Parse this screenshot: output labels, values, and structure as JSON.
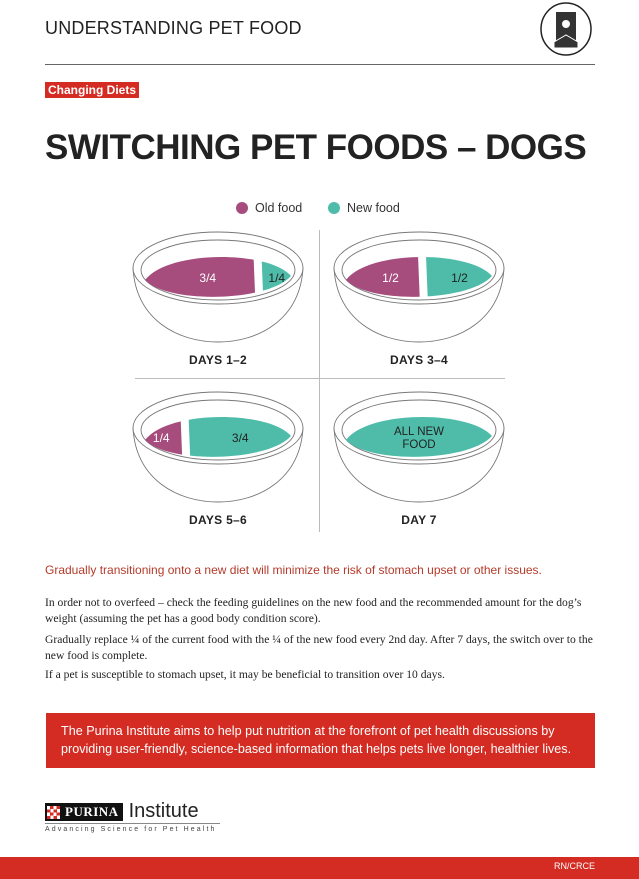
{
  "header": {
    "series_title": "UNDERSTANDING PET FOOD",
    "icon": "pet-food-bag-icon",
    "tag": "Changing Diets"
  },
  "title": "SWITCHING PET FOODS – DOGS",
  "colors": {
    "old_food": "#a64d7e",
    "new_food": "#4fbcaa",
    "brand_red": "#d42b22"
  },
  "legend": {
    "old": "Old food",
    "new": "New food"
  },
  "bowls": [
    {
      "day": "DAYS 1–2",
      "old_fraction": 0.75,
      "old_label": "3/4",
      "new_label": "1/4"
    },
    {
      "day": "DAYS 3–4",
      "old_fraction": 0.5,
      "old_label": "1/2",
      "new_label": "1/2"
    },
    {
      "day": "DAYS 5–6",
      "old_fraction": 0.25,
      "old_label": "1/4",
      "new_label": "3/4"
    },
    {
      "day": "DAY 7",
      "old_fraction": 0,
      "old_label": "",
      "new_label": "ALL NEW FOOD"
    }
  ],
  "lead": "Gradually transitioning onto a new diet will minimize the risk of stomach upset or other issues.",
  "paragraphs": [
    "In order not to overfeed – check the feeding guidelines on the new food and the recommended amount for the dog’s weight (assuming the pet has a good body condition score).",
    "Gradually replace ¼ of the current food with the ¼ of the new food every 2nd day. After 7 days, the switch over to the new food is complete.",
    "If a pet is susceptible to stomach upset, it may be beneficial to transition over 10 days."
  ],
  "banner": "The Purina Institute aims to help put nutrition at the forefront of pet health discussions by providing user-friendly, science-based information that helps pets live longer, healthier lives.",
  "brand": {
    "purina": "PURINA",
    "institute": "Institute",
    "tagline": "Advancing Science for Pet Health"
  },
  "footer_code": "RN/CRCE"
}
